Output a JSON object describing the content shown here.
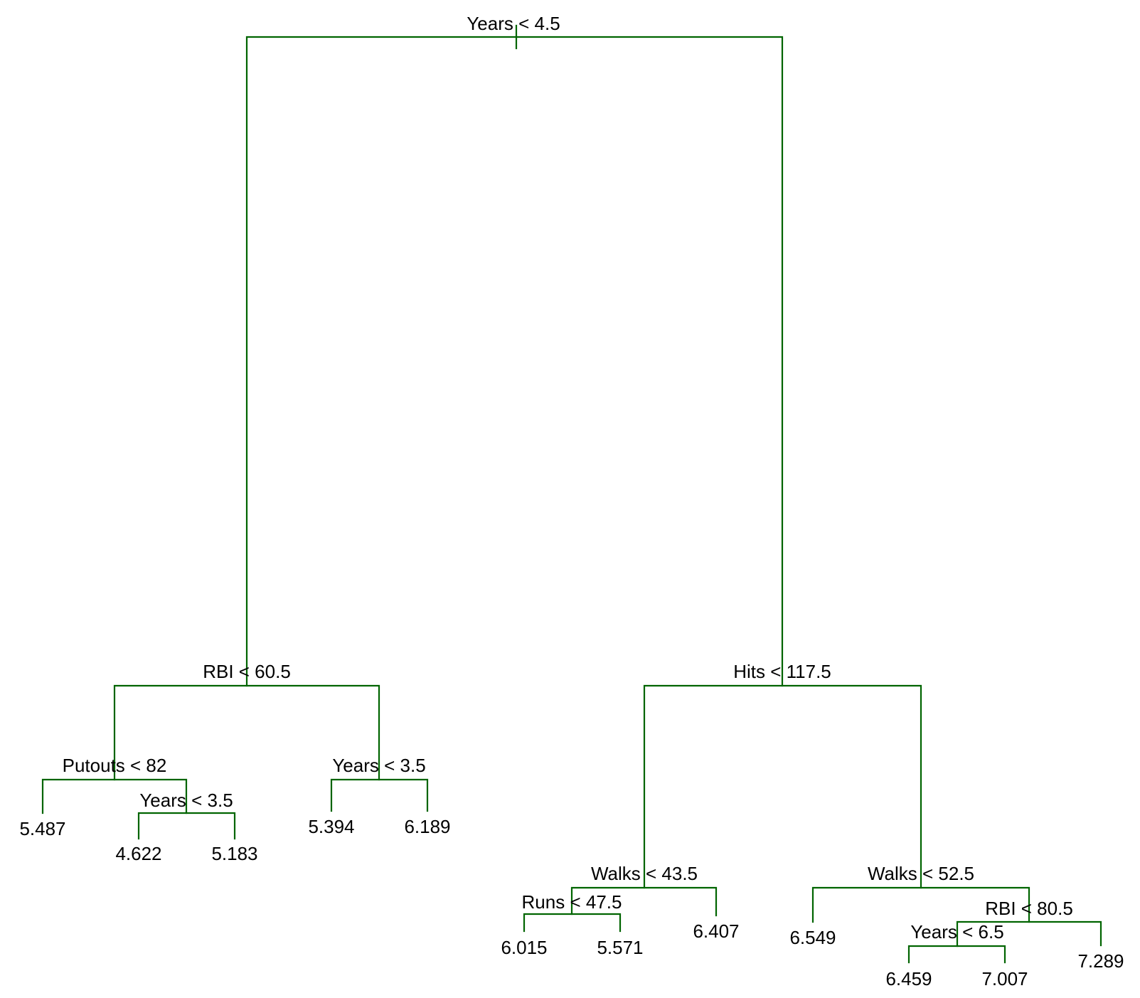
{
  "colors": {
    "line": "#006400",
    "text": "#000000"
  },
  "splits": {
    "root": "Years < 4.5",
    "left": "RBI < 60.5",
    "left_left": "Putouts < 82",
    "left_left_right": "Years < 3.5",
    "left_right": "Years < 3.5",
    "right": "Hits < 117.5",
    "right_left": "Walks < 43.5",
    "right_left_left": "Runs < 47.5",
    "right_right": "Walks < 52.5",
    "right_right_right": "RBI < 80.5",
    "right_right_right_left": "Years < 6.5"
  },
  "leaves": {
    "l1": "5.487",
    "l2": "4.622",
    "l3": "5.183",
    "l4": "5.394",
    "l5": "6.189",
    "l6": "6.015",
    "l7": "5.571",
    "l8": "6.407",
    "l9": "6.549",
    "l10": "6.459",
    "l11": "7.007",
    "l12": "7.289"
  }
}
